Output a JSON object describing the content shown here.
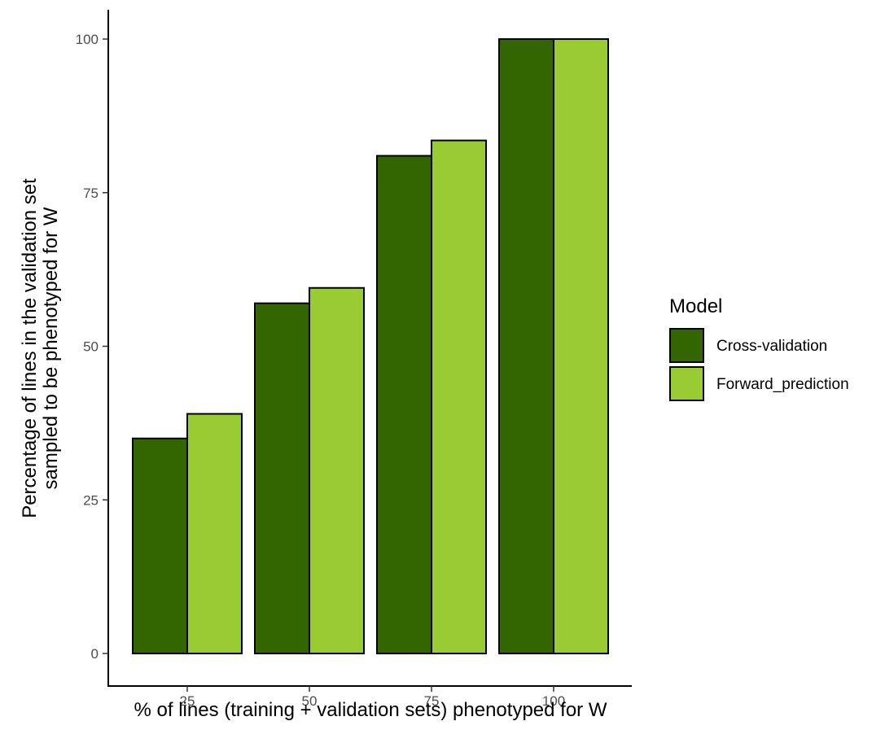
{
  "chart_data": {
    "type": "bar",
    "categories": [
      "25",
      "50",
      "75",
      "100"
    ],
    "series": [
      {
        "name": "Cross-validation",
        "values": [
          35,
          57,
          81,
          100
        ],
        "color": "#336600"
      },
      {
        "name": "Forward_prediction",
        "values": [
          39,
          59.5,
          83.5,
          100
        ],
        "color": "#99cc33"
      }
    ],
    "xlabel": "% of lines (training + validation sets) phenotyped for W",
    "ylabel_lines": [
      "Percentage of lines in the validation set",
      "sampled to be phenotyped for W"
    ],
    "yticks": [
      0,
      25,
      50,
      75,
      100
    ],
    "ylim": [
      0,
      100
    ],
    "grid": false,
    "legend": {
      "title": "Model",
      "position": "right"
    }
  }
}
